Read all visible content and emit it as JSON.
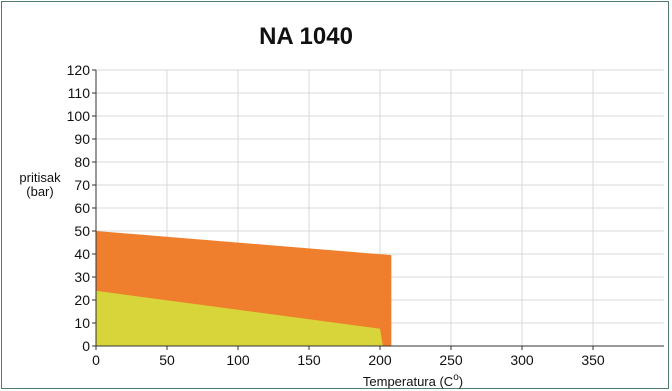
{
  "chart_data": {
    "type": "area",
    "title": "NA 1040",
    "xlabel_text": "Temperatura (C",
    "xlabel_sup": "o",
    "xlabel_close": ")",
    "ylabel_line1": "pritisak",
    "ylabel_line2": "(bar)",
    "xlim": [
      0,
      400
    ],
    "ylim": [
      0,
      120
    ],
    "x_ticks": [
      0,
      50,
      100,
      150,
      200,
      250,
      300,
      350
    ],
    "y_ticks": [
      0,
      10,
      20,
      30,
      40,
      50,
      60,
      70,
      80,
      90,
      100,
      110,
      120
    ],
    "grid": true,
    "series": [
      {
        "color": "#ef7f2d",
        "points": [
          [
            0,
            50
          ],
          [
            208,
            39.5
          ],
          [
            208,
            0
          ],
          [
            0,
            0
          ]
        ]
      },
      {
        "color": "#d8d53a",
        "points": [
          [
            0,
            24
          ],
          [
            200,
            7.5
          ],
          [
            202,
            0
          ],
          [
            0,
            0
          ]
        ]
      }
    ]
  }
}
